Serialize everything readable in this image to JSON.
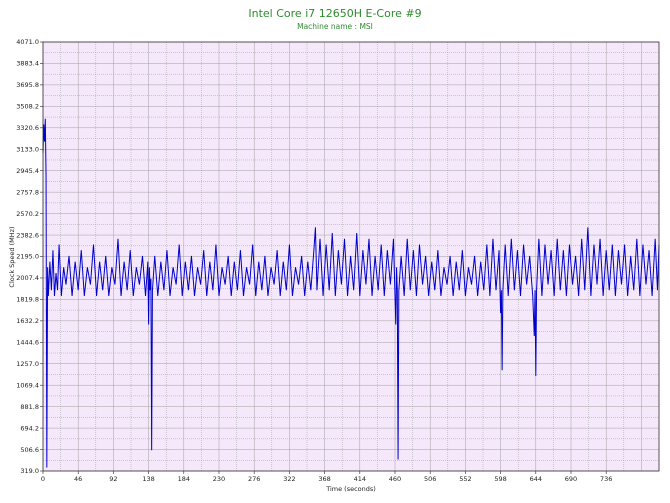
{
  "chart_data": {
    "type": "line",
    "title": "Intel Core i7 12650H E-Core #9",
    "subtitle": "Machine name : MSI",
    "xlabel": "Time (seconds)",
    "ylabel": "Clock Speed (MHz)",
    "xlim": [
      0,
      805
    ],
    "ylim": [
      319.0,
      4071.0
    ],
    "x_ticks": [
      "0",
      "46",
      "92",
      "138",
      "184",
      "230",
      "276",
      "322",
      "368",
      "414",
      "460",
      "506",
      "552",
      "598",
      "644",
      "690",
      "736"
    ],
    "y_ticks": [
      "319.0",
      "506.6",
      "694.2",
      "881.8",
      "1069.4",
      "1257.0",
      "1444.6",
      "1632.2",
      "1819.8",
      "2007.4",
      "2195.0",
      "2382.6",
      "2570.2",
      "2757.8",
      "2945.4",
      "3133.0",
      "3320.6",
      "3508.2",
      "3695.8",
      "3883.4",
      "4071.0"
    ],
    "grid": true,
    "legend": "none",
    "plot_background": "#f5e8fb",
    "grid_color": "#a0a0a0",
    "line_color": "#0000cc",
    "title_color": "#2e8b2e",
    "series": [
      {
        "values": [
          [
            0,
            3100
          ],
          [
            1,
            3350
          ],
          [
            2,
            3200
          ],
          [
            3,
            3400
          ],
          [
            4,
            2900
          ],
          [
            5,
            350
          ],
          [
            6,
            2100
          ],
          [
            7,
            1850
          ],
          [
            9,
            2150
          ],
          [
            11,
            1900
          ],
          [
            13,
            2250
          ],
          [
            15,
            1850
          ],
          [
            17,
            2050
          ],
          [
            19,
            1900
          ],
          [
            21,
            2300
          ],
          [
            24,
            1850
          ],
          [
            27,
            2100
          ],
          [
            30,
            1950
          ],
          [
            34,
            2200
          ],
          [
            38,
            1850
          ],
          [
            42,
            2150
          ],
          [
            46,
            1900
          ],
          [
            50,
            2250
          ],
          [
            54,
            1850
          ],
          [
            58,
            2100
          ],
          [
            62,
            1950
          ],
          [
            66,
            2300
          ],
          [
            70,
            1850
          ],
          [
            74,
            2150
          ],
          [
            78,
            1900
          ],
          [
            82,
            2200
          ],
          [
            86,
            1850
          ],
          [
            90,
            2100
          ],
          [
            94,
            1950
          ],
          [
            98,
            2350
          ],
          [
            102,
            1850
          ],
          [
            106,
            2150
          ],
          [
            110,
            1900
          ],
          [
            114,
            2250
          ],
          [
            118,
            1850
          ],
          [
            122,
            2100
          ],
          [
            126,
            1950
          ],
          [
            130,
            2200
          ],
          [
            134,
            1850
          ],
          [
            137,
            2150
          ],
          [
            138,
            1600
          ],
          [
            139,
            2100
          ],
          [
            140,
            1900
          ],
          [
            141,
            2000
          ],
          [
            142,
            500
          ],
          [
            143,
            1900
          ],
          [
            146,
            2200
          ],
          [
            150,
            1850
          ],
          [
            154,
            2150
          ],
          [
            158,
            1900
          ],
          [
            162,
            2250
          ],
          [
            166,
            1850
          ],
          [
            170,
            2100
          ],
          [
            174,
            1950
          ],
          [
            178,
            2300
          ],
          [
            182,
            1850
          ],
          [
            186,
            2150
          ],
          [
            190,
            1900
          ],
          [
            194,
            2200
          ],
          [
            198,
            1850
          ],
          [
            202,
            2100
          ],
          [
            206,
            1950
          ],
          [
            210,
            2250
          ],
          [
            214,
            1850
          ],
          [
            218,
            2150
          ],
          [
            222,
            1900
          ],
          [
            226,
            2300
          ],
          [
            230,
            1850
          ],
          [
            234,
            2100
          ],
          [
            238,
            1950
          ],
          [
            242,
            2200
          ],
          [
            246,
            1850
          ],
          [
            250,
            2150
          ],
          [
            254,
            1900
          ],
          [
            258,
            2250
          ],
          [
            262,
            1850
          ],
          [
            266,
            2100
          ],
          [
            270,
            1950
          ],
          [
            274,
            2300
          ],
          [
            278,
            1850
          ],
          [
            282,
            2150
          ],
          [
            286,
            1900
          ],
          [
            290,
            2200
          ],
          [
            294,
            1850
          ],
          [
            298,
            2100
          ],
          [
            302,
            1950
          ],
          [
            306,
            2250
          ],
          [
            310,
            1850
          ],
          [
            314,
            2150
          ],
          [
            318,
            1900
          ],
          [
            322,
            2300
          ],
          [
            326,
            1850
          ],
          [
            330,
            2100
          ],
          [
            334,
            1950
          ],
          [
            338,
            2200
          ],
          [
            342,
            1850
          ],
          [
            346,
            2150
          ],
          [
            350,
            1900
          ],
          [
            354,
            2250
          ],
          [
            356,
            2450
          ],
          [
            358,
            1900
          ],
          [
            362,
            2350
          ],
          [
            366,
            1850
          ],
          [
            370,
            2300
          ],
          [
            374,
            1900
          ],
          [
            378,
            2400
          ],
          [
            382,
            1850
          ],
          [
            386,
            2250
          ],
          [
            390,
            1950
          ],
          [
            394,
            2350
          ],
          [
            398,
            1850
          ],
          [
            402,
            2200
          ],
          [
            406,
            1900
          ],
          [
            410,
            2400
          ],
          [
            414,
            1850
          ],
          [
            418,
            2250
          ],
          [
            422,
            1950
          ],
          [
            426,
            2350
          ],
          [
            430,
            1850
          ],
          [
            434,
            2200
          ],
          [
            438,
            1900
          ],
          [
            442,
            2300
          ],
          [
            446,
            1850
          ],
          [
            450,
            2250
          ],
          [
            454,
            1950
          ],
          [
            458,
            2350
          ],
          [
            460,
            1850
          ],
          [
            461,
            1600
          ],
          [
            462,
            2100
          ],
          [
            463,
            1900
          ],
          [
            464,
            420
          ],
          [
            465,
            1900
          ],
          [
            468,
            2200
          ],
          [
            472,
            1850
          ],
          [
            476,
            2350
          ],
          [
            480,
            1900
          ],
          [
            484,
            2250
          ],
          [
            488,
            1850
          ],
          [
            492,
            2300
          ],
          [
            496,
            1950
          ],
          [
            500,
            2200
          ],
          [
            504,
            1850
          ],
          [
            508,
            2150
          ],
          [
            512,
            1900
          ],
          [
            516,
            2250
          ],
          [
            520,
            1850
          ],
          [
            524,
            2100
          ],
          [
            528,
            1950
          ],
          [
            532,
            2200
          ],
          [
            536,
            1850
          ],
          [
            540,
            2150
          ],
          [
            544,
            1900
          ],
          [
            548,
            2250
          ],
          [
            552,
            1850
          ],
          [
            556,
            2100
          ],
          [
            560,
            1950
          ],
          [
            564,
            2200
          ],
          [
            568,
            1850
          ],
          [
            572,
            2150
          ],
          [
            576,
            1900
          ],
          [
            580,
            2300
          ],
          [
            584,
            1850
          ],
          [
            588,
            2350
          ],
          [
            592,
            1900
          ],
          [
            596,
            2250
          ],
          [
            598,
            1700
          ],
          [
            599,
            1900
          ],
          [
            600,
            1200
          ],
          [
            601,
            1900
          ],
          [
            604,
            2300
          ],
          [
            608,
            1850
          ],
          [
            612,
            2350
          ],
          [
            616,
            1900
          ],
          [
            620,
            2250
          ],
          [
            624,
            1850
          ],
          [
            628,
            2300
          ],
          [
            632,
            1950
          ],
          [
            636,
            2200
          ],
          [
            640,
            1850
          ],
          [
            642,
            1500
          ],
          [
            643,
            1900
          ],
          [
            644,
            1150
          ],
          [
            645,
            1900
          ],
          [
            648,
            2350
          ],
          [
            652,
            1850
          ],
          [
            656,
            2300
          ],
          [
            660,
            1950
          ],
          [
            664,
            2250
          ],
          [
            668,
            1850
          ],
          [
            672,
            2350
          ],
          [
            676,
            1900
          ],
          [
            680,
            2250
          ],
          [
            684,
            1850
          ],
          [
            688,
            2300
          ],
          [
            692,
            1950
          ],
          [
            696,
            2200
          ],
          [
            700,
            1850
          ],
          [
            704,
            2350
          ],
          [
            708,
            1900
          ],
          [
            712,
            2450
          ],
          [
            716,
            1850
          ],
          [
            720,
            2300
          ],
          [
            724,
            1950
          ],
          [
            728,
            2350
          ],
          [
            732,
            1850
          ],
          [
            736,
            2250
          ],
          [
            740,
            1900
          ],
          [
            744,
            2300
          ],
          [
            748,
            1850
          ],
          [
            752,
            2250
          ],
          [
            756,
            1950
          ],
          [
            760,
            2300
          ],
          [
            764,
            1850
          ],
          [
            768,
            2200
          ],
          [
            772,
            1900
          ],
          [
            776,
            2350
          ],
          [
            780,
            1850
          ],
          [
            784,
            2300
          ],
          [
            788,
            1950
          ],
          [
            792,
            2250
          ],
          [
            796,
            1850
          ],
          [
            800,
            2350
          ],
          [
            803,
            1900
          ],
          [
            805,
            2300
          ]
        ]
      }
    ]
  }
}
